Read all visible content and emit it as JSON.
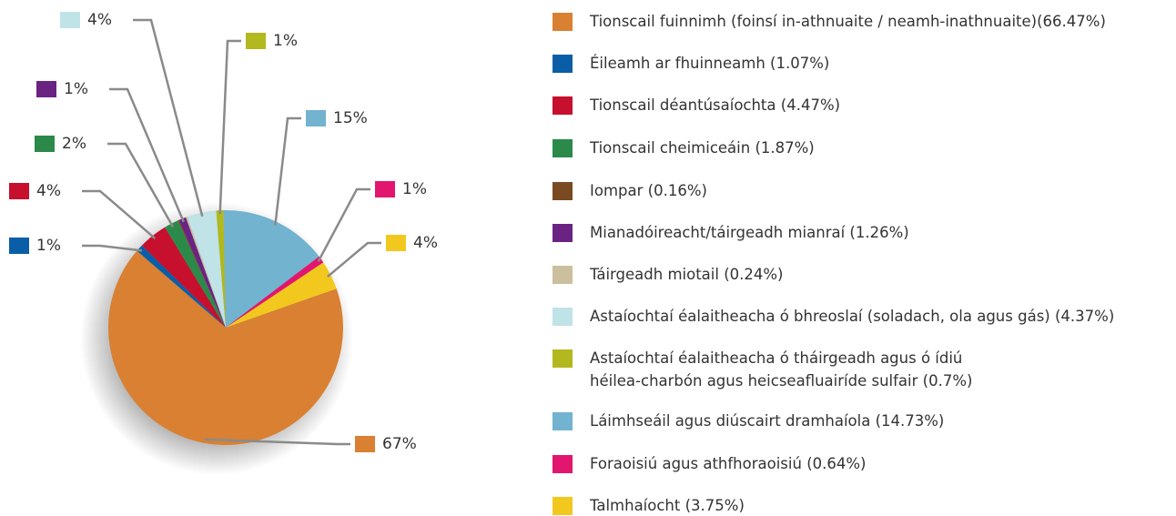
{
  "chart_data": {
    "type": "pie",
    "categories": [
      "Tionscail fuinnimh (foinsí in-athnuaite / neamh-inathnuaite)(66.47%)",
      "Éileamh ar fhuinneamh (1.07%)",
      "Tionscail déantúsaíochta (4.47%)",
      "Tionscail cheimiceáin (1.87%)",
      "Iompar (0.16%)",
      "Mianadóireacht/táirgeadh mianraí (1.26%)",
      "Táirgeadh miotail (0.24%)",
      "Astaíochtaí éalaitheacha ó bhreoslaí (soladach, ola agus gás) (4.37%)",
      "Astaíochtaí éalaitheacha ó tháirgeadh agus ó ídiú\nhéilea-charbón agus heicseafluairíde sulfair (0.7%)",
      "Láimhseáil agus diúscairt dramhaíola (14.73%)",
      "Foraoisiú agus athfhoraoisiú (0.64%)",
      "Talmhaíocht (3.75%)"
    ],
    "values": [
      67,
      1,
      4,
      2,
      0.16,
      1,
      0.24,
      4,
      1,
      15,
      1,
      4
    ],
    "value_labels": [
      "67%",
      "1%",
      "4%",
      "2%",
      null,
      "1%",
      null,
      "4%",
      "1%",
      "15%",
      "1%",
      "4%"
    ],
    "colors": [
      "#d98032",
      "#0a5ea8",
      "#c70f2e",
      "#2b8a4a",
      "#7a4a22",
      "#6a2383",
      "#cbbf9e",
      "#bfe3e6",
      "#b2b81d",
      "#72b3cf",
      "#e2166e",
      "#f2c81e"
    ],
    "legend": "right"
  }
}
